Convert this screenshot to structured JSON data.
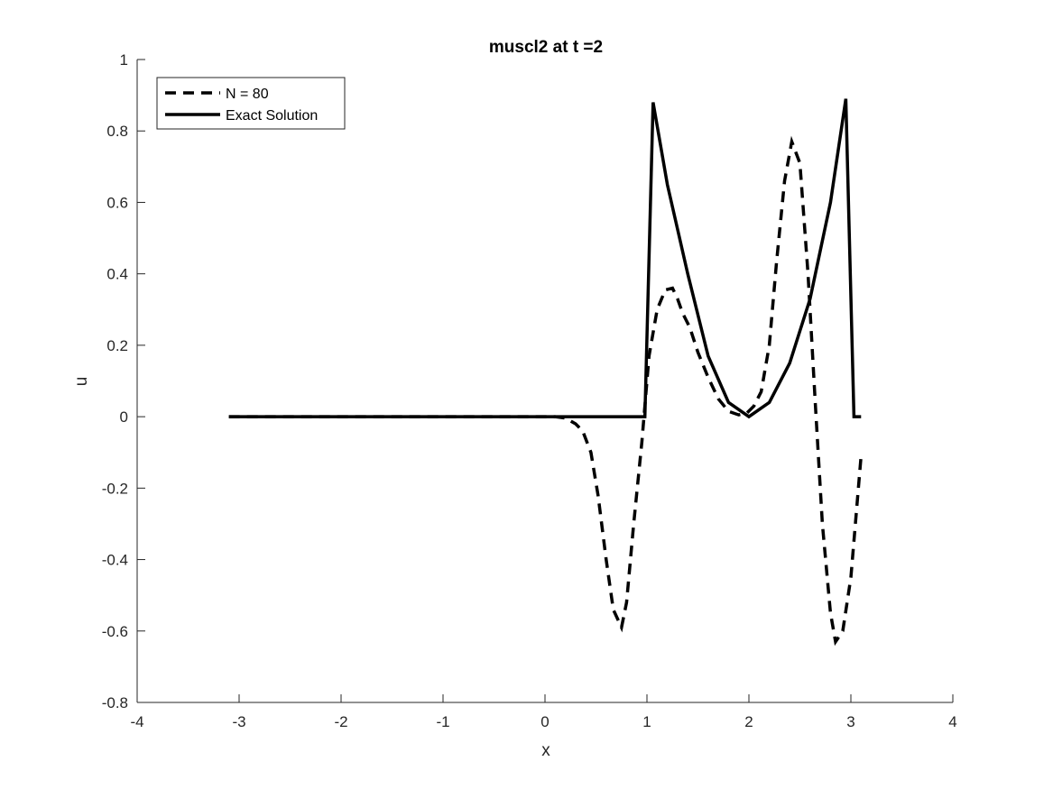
{
  "chart_data": {
    "type": "line",
    "title": "muscl2 at t =2",
    "xlabel": "x",
    "ylabel": "u",
    "xlim": [
      -4,
      4
    ],
    "ylim": [
      -0.8,
      1
    ],
    "xticks": [
      "-4",
      "-3",
      "-2",
      "-1",
      "0",
      "1",
      "2",
      "3",
      "4"
    ],
    "yticks": [
      "-0.8",
      "-0.6",
      "-0.4",
      "-0.2",
      "0",
      "0.2",
      "0.4",
      "0.6",
      "0.8",
      "1"
    ],
    "grid": false,
    "legend_position": "top-left",
    "series": [
      {
        "name": "N = 80",
        "style": "dashed",
        "color": "#000000",
        "x": [
          -3.1,
          -2.0,
          -1.0,
          0.0,
          0.1,
          0.2,
          0.3,
          0.37,
          0.45,
          0.52,
          0.6,
          0.67,
          0.75,
          0.8,
          0.87,
          0.95,
          1.02,
          1.1,
          1.18,
          1.25,
          1.3,
          1.35,
          1.42,
          1.5,
          1.6,
          1.7,
          1.8,
          1.9,
          1.98,
          2.05,
          2.12,
          2.2,
          2.27,
          2.35,
          2.42,
          2.5,
          2.58,
          2.65,
          2.72,
          2.8,
          2.85,
          2.92,
          3.0,
          3.1
        ],
        "y": [
          0,
          0,
          0,
          0,
          0,
          -0.004,
          -0.02,
          -0.04,
          -0.1,
          -0.22,
          -0.4,
          -0.54,
          -0.59,
          -0.52,
          -0.3,
          -0.07,
          0.17,
          0.3,
          0.355,
          0.36,
          0.33,
          0.29,
          0.25,
          0.18,
          0.11,
          0.05,
          0.015,
          0.005,
          0.01,
          0.03,
          0.07,
          0.2,
          0.43,
          0.66,
          0.77,
          0.71,
          0.4,
          0.04,
          -0.3,
          -0.55,
          -0.63,
          -0.6,
          -0.45,
          -0.11
        ]
      },
      {
        "name": "Exact Solution",
        "style": "solid",
        "color": "#000000",
        "x": [
          -3.1,
          0.0,
          0.98,
          1.06,
          1.2,
          1.4,
          1.6,
          1.8,
          2.0,
          2.2,
          2.4,
          2.6,
          2.8,
          2.95,
          3.03,
          3.1
        ],
        "y": [
          0,
          0,
          0,
          0.88,
          0.65,
          0.4,
          0.17,
          0.04,
          0.0,
          0.04,
          0.15,
          0.33,
          0.6,
          0.89,
          0,
          0
        ]
      }
    ]
  }
}
